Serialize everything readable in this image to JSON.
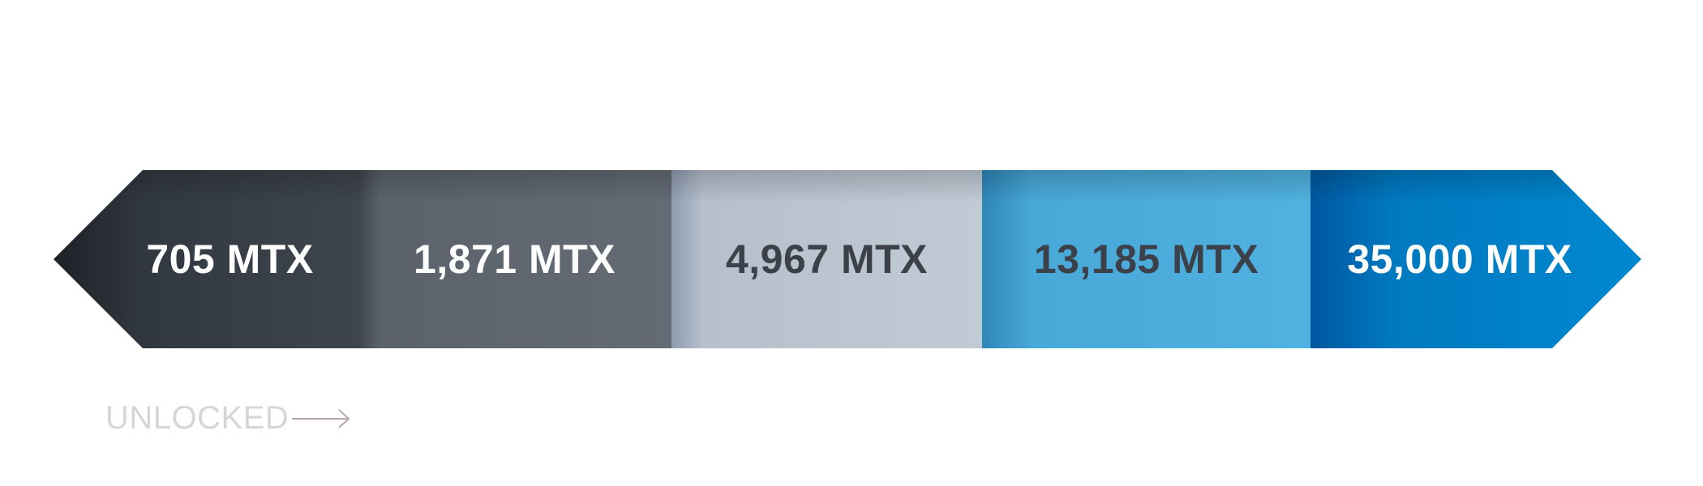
{
  "tiers": [
    {
      "label": "705 MTX",
      "color": "#3a4048"
    },
    {
      "label": "1,871 MTX",
      "color": "#646b75"
    },
    {
      "label": "4,967 MTX",
      "color": "#c1cbd5"
    },
    {
      "label": "13,185 MTX",
      "color": "#50b2e0"
    },
    {
      "label": "35,000 MTX",
      "color": "#0088d0"
    }
  ],
  "unlocked": {
    "label": "UNLOCKED",
    "icon": "arrow-right-icon"
  }
}
